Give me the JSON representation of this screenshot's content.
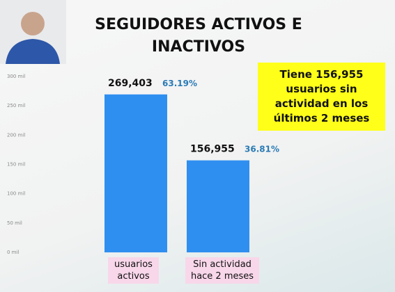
{
  "chart_data": {
    "type": "bar",
    "title": "SEGUIDORES ACTIVOS E INACTIVOS",
    "categories": [
      "usuarios activos",
      "Sin actividad hace 2 meses"
    ],
    "values": [
      269403,
      156955
    ],
    "value_labels": [
      "269,403",
      "156,955"
    ],
    "percent_labels": [
      "63.19%",
      "36.81%"
    ],
    "color": "#2f8ff0",
    "ylim": [
      0,
      300000
    ],
    "yticks": [
      {
        "value": 0,
        "label": "0 mil"
      },
      {
        "value": 50000,
        "label": "50 mil"
      },
      {
        "value": 100000,
        "label": "100 mil"
      },
      {
        "value": 150000,
        "label": "150 mil"
      },
      {
        "value": 200000,
        "label": "200 mil"
      },
      {
        "value": 250000,
        "label": "250 mil"
      },
      {
        "value": 300000,
        "label": "300 mil"
      }
    ],
    "annotation": "Tiene 156,955 usuarios sin actividad en los últimos 2 meses"
  }
}
